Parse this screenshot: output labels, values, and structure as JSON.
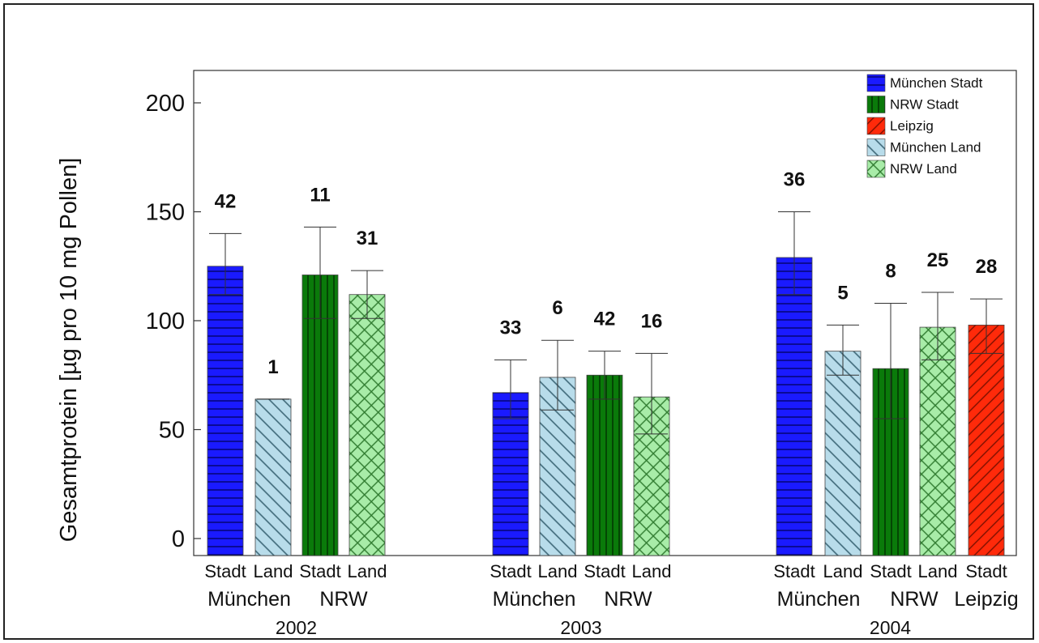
{
  "chart_data": {
    "type": "bar",
    "title": "",
    "xlabel": "",
    "ylabel": "Gesamtprotein [µg pro 10 mg Pollen]",
    "ylim": [
      0,
      215
    ],
    "yticks": [
      0,
      50,
      100,
      150,
      200
    ],
    "grid": false,
    "legend_position": "top-right",
    "series": [
      {
        "name": "München Stadt",
        "color": "#1a1aff",
        "pattern": "horizontal"
      },
      {
        "name": "NRW Stadt",
        "color": "#0a7a0a",
        "pattern": "vertical"
      },
      {
        "name": "Leipzig",
        "color": "#ff2a0a",
        "pattern": "diagonal"
      },
      {
        "name": "München Land",
        "color": "#b8dcea",
        "pattern": "backdiagonal"
      },
      {
        "name": "NRW Land",
        "color": "#a8eca8",
        "pattern": "crosshatch"
      }
    ],
    "years": [
      {
        "label": "2002",
        "groups": [
          {
            "label": "München",
            "bars": [
              {
                "category": "Stadt",
                "series": "München Stadt",
                "value": 125,
                "err_low": 112,
                "err_high": 140,
                "n": "42"
              },
              {
                "category": "Land",
                "series": "München Land",
                "value": 64,
                "err_low": 64,
                "err_high": 64,
                "n": "1"
              }
            ]
          },
          {
            "label": "NRW",
            "bars": [
              {
                "category": "Stadt",
                "series": "NRW Stadt",
                "value": 121,
                "err_low": 101,
                "err_high": 143,
                "n": "11"
              },
              {
                "category": "Land",
                "series": "NRW Land",
                "value": 112,
                "err_low": 101,
                "err_high": 123,
                "n": "31"
              }
            ]
          }
        ]
      },
      {
        "label": "2003",
        "groups": [
          {
            "label": "München",
            "bars": [
              {
                "category": "Stadt",
                "series": "München Stadt",
                "value": 67,
                "err_low": 55,
                "err_high": 82,
                "n": "33"
              },
              {
                "category": "Land",
                "series": "München Land",
                "value": 74,
                "err_low": 59,
                "err_high": 91,
                "n": "6"
              }
            ]
          },
          {
            "label": "NRW",
            "bars": [
              {
                "category": "Stadt",
                "series": "NRW Stadt",
                "value": 75,
                "err_low": 64,
                "err_high": 86,
                "n": "42"
              },
              {
                "category": "Land",
                "series": "NRW Land",
                "value": 65,
                "err_low": 48,
                "err_high": 85,
                "n": "16"
              }
            ]
          }
        ]
      },
      {
        "label": "2004",
        "groups": [
          {
            "label": "München",
            "bars": [
              {
                "category": "Stadt",
                "series": "München Stadt",
                "value": 129,
                "err_low": 112,
                "err_high": 150,
                "n": "36"
              },
              {
                "category": "Land",
                "series": "München Land",
                "value": 86,
                "err_low": 75,
                "err_high": 98,
                "n": "5"
              }
            ]
          },
          {
            "label": "NRW",
            "bars": [
              {
                "category": "Stadt",
                "series": "NRW Stadt",
                "value": 78,
                "err_low": 55,
                "err_high": 108,
                "n": "8"
              },
              {
                "category": "Land",
                "series": "NRW Land",
                "value": 97,
                "err_low": 82,
                "err_high": 113,
                "n": "25"
              }
            ]
          },
          {
            "label": "Leipzig",
            "bars": [
              {
                "category": "Stadt",
                "series": "Leipzig",
                "value": 98,
                "err_low": 85,
                "err_high": 110,
                "n": "28"
              }
            ]
          }
        ]
      }
    ]
  }
}
